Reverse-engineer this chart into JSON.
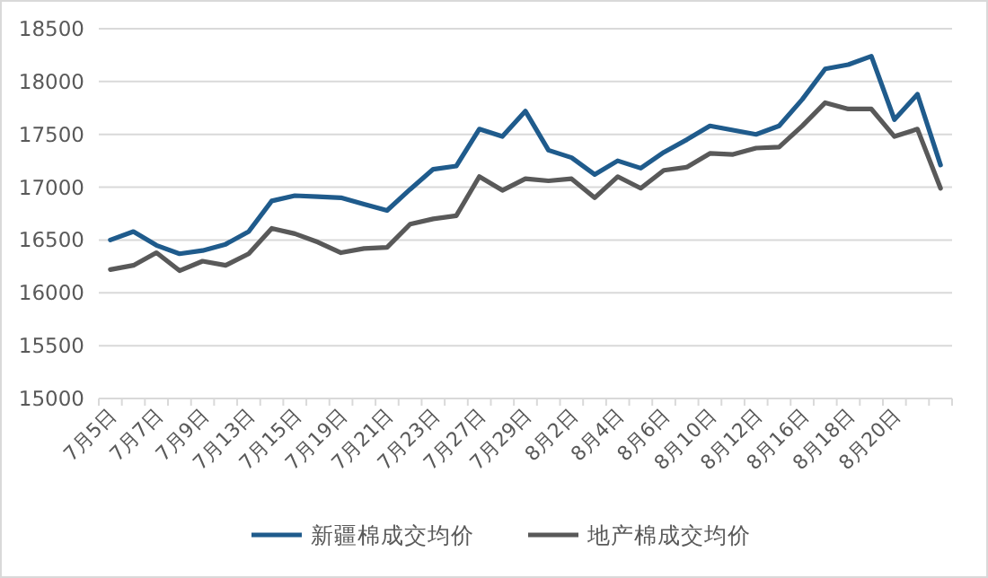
{
  "chart_data": {
    "type": "line",
    "categories": [
      "7月5日",
      null,
      "7月7日",
      null,
      "7月9日",
      null,
      "7月13日",
      null,
      "7月15日",
      null,
      "7月19日",
      null,
      "7月21日",
      null,
      "7月23日",
      null,
      "7月27日",
      null,
      "7月29日",
      null,
      "8月2日",
      null,
      "8月4日",
      null,
      "8月6日",
      null,
      "8月10日",
      null,
      "8月12日",
      null,
      "8月16日",
      null,
      "8月18日",
      null,
      "8月20日",
      null,
      null
    ],
    "series": [
      {
        "name": "新疆棉成交均价",
        "color": "#1f5b8c",
        "values": [
          16500,
          16580,
          16450,
          16370,
          16400,
          16460,
          16580,
          16870,
          16920,
          16910,
          16900,
          16840,
          16780,
          16980,
          17170,
          17200,
          17550,
          17480,
          17720,
          17350,
          17280,
          17120,
          17250,
          17180,
          17330,
          17450,
          17580,
          17540,
          17500,
          17580,
          17830,
          18120,
          18160,
          18240,
          17640,
          17880,
          17210
        ]
      },
      {
        "name": "地产棉成交均价",
        "color": "#595959",
        "values": [
          16220,
          16260,
          16380,
          16210,
          16300,
          16260,
          16370,
          16610,
          16560,
          16480,
          16380,
          16420,
          16430,
          16650,
          16700,
          16730,
          17100,
          16970,
          17080,
          17060,
          17080,
          16900,
          17100,
          16990,
          17160,
          17190,
          17320,
          17310,
          17370,
          17380,
          17580,
          17800,
          17740,
          17740,
          17480,
          17550,
          16990
        ]
      }
    ],
    "ylim": [
      15000,
      18500
    ],
    "yticks": [
      15000,
      15500,
      16000,
      16500,
      17000,
      17500,
      18000,
      18500
    ],
    "grid": "y",
    "legend": "bottom"
  }
}
